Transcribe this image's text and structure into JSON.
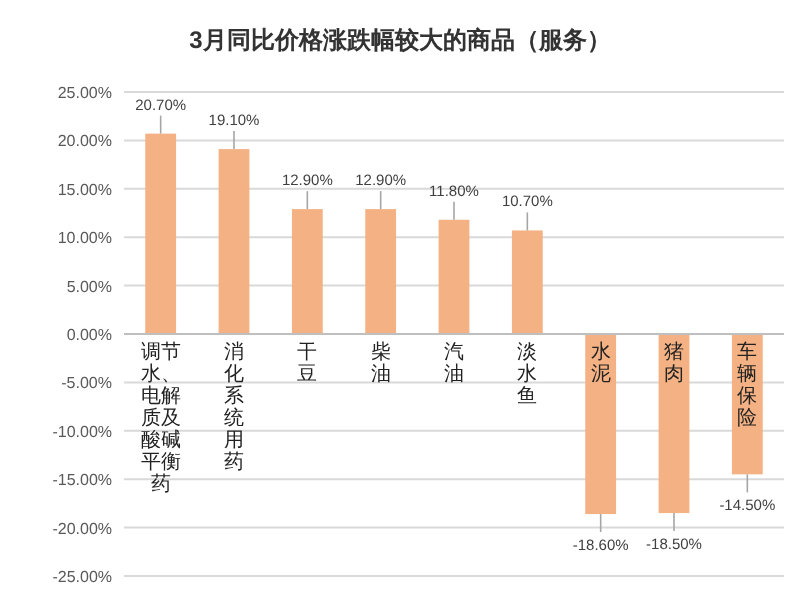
{
  "chart_data": {
    "type": "bar",
    "title": "3月同比价格涨跌幅较大的商品（服务）",
    "categories": [
      "调节水、电解质及酸碱平衡药",
      "消化系统用药",
      "干豆",
      "柴油",
      "汽油",
      "淡水鱼",
      "水泥",
      "猪肉",
      "车辆保险"
    ],
    "values": [
      20.7,
      19.1,
      12.9,
      12.9,
      11.8,
      10.7,
      -18.6,
      -18.5,
      -14.5
    ],
    "value_labels": [
      "20.70%",
      "19.10%",
      "12.90%",
      "12.90%",
      "11.80%",
      "10.70%",
      "-18.60%",
      "-18.50%",
      "-14.50%"
    ],
    "color": "#f4b183",
    "ylim": [
      -25,
      25
    ],
    "yticks": [
      {
        "value": -25,
        "label": "-25.00%"
      },
      {
        "value": -20,
        "label": "-20.00%"
      },
      {
        "value": -15,
        "label": "-15.00%"
      },
      {
        "value": -10,
        "label": "-10.00%"
      },
      {
        "value": -5,
        "label": "-5.00%"
      },
      {
        "value": 0,
        "label": "0.00%"
      },
      {
        "value": 5,
        "label": "5.00%"
      },
      {
        "value": 10,
        "label": "10.00%"
      },
      {
        "value": 15,
        "label": "15.00%"
      },
      {
        "value": 20,
        "label": "20.00%"
      },
      {
        "value": 25,
        "label": "25.00%"
      }
    ],
    "grid": "y"
  }
}
